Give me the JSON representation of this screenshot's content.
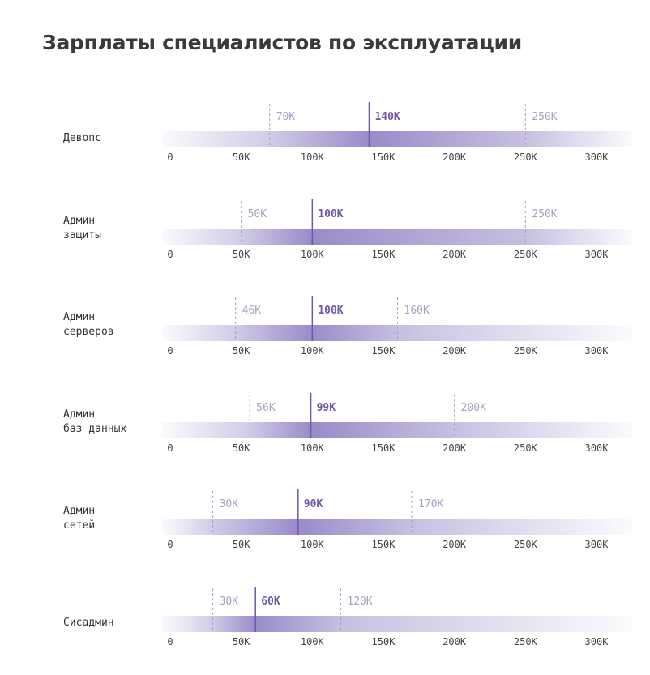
{
  "title": "Зарплаты специалистов по эксплуатации",
  "chart_data": {
    "type": "range",
    "xlim": [
      0,
      300000
    ],
    "tick_values": [
      0,
      50000,
      100000,
      150000,
      200000,
      250000,
      300000
    ],
    "tick_labels": [
      "0",
      "50K",
      "100K",
      "150K",
      "200K",
      "250K",
      "300K"
    ],
    "colors": {
      "accent": "#6f58a6",
      "bar": "#9a8bc9",
      "muted": "#a79fc2",
      "ticks": "#444444"
    },
    "rows": [
      {
        "label": [
          "Девопс"
        ],
        "min": 70000,
        "median": 140000,
        "max": 250000,
        "min_label": "70K",
        "median_label": "140K",
        "max_label": "250K"
      },
      {
        "label": [
          "Админ",
          "защиты"
        ],
        "min": 50000,
        "median": 100000,
        "max": 250000,
        "min_label": "50K",
        "median_label": "100K",
        "max_label": "250K"
      },
      {
        "label": [
          "Админ",
          "серверов"
        ],
        "min": 46000,
        "median": 100000,
        "max": 160000,
        "min_label": "46K",
        "median_label": "100K",
        "max_label": "160K"
      },
      {
        "label": [
          "Админ",
          "баз данных"
        ],
        "min": 56000,
        "median": 99000,
        "max": 200000,
        "min_label": "56K",
        "median_label": "99K",
        "max_label": "200K"
      },
      {
        "label": [
          "Админ",
          "сетей"
        ],
        "min": 30000,
        "median": 90000,
        "max": 170000,
        "min_label": "30K",
        "median_label": "90K",
        "max_label": "170K"
      },
      {
        "label": [
          "Сисадмин"
        ],
        "min": 30000,
        "median": 60000,
        "max": 120000,
        "min_label": "30K",
        "median_label": "60K",
        "max_label": "120K"
      }
    ]
  }
}
